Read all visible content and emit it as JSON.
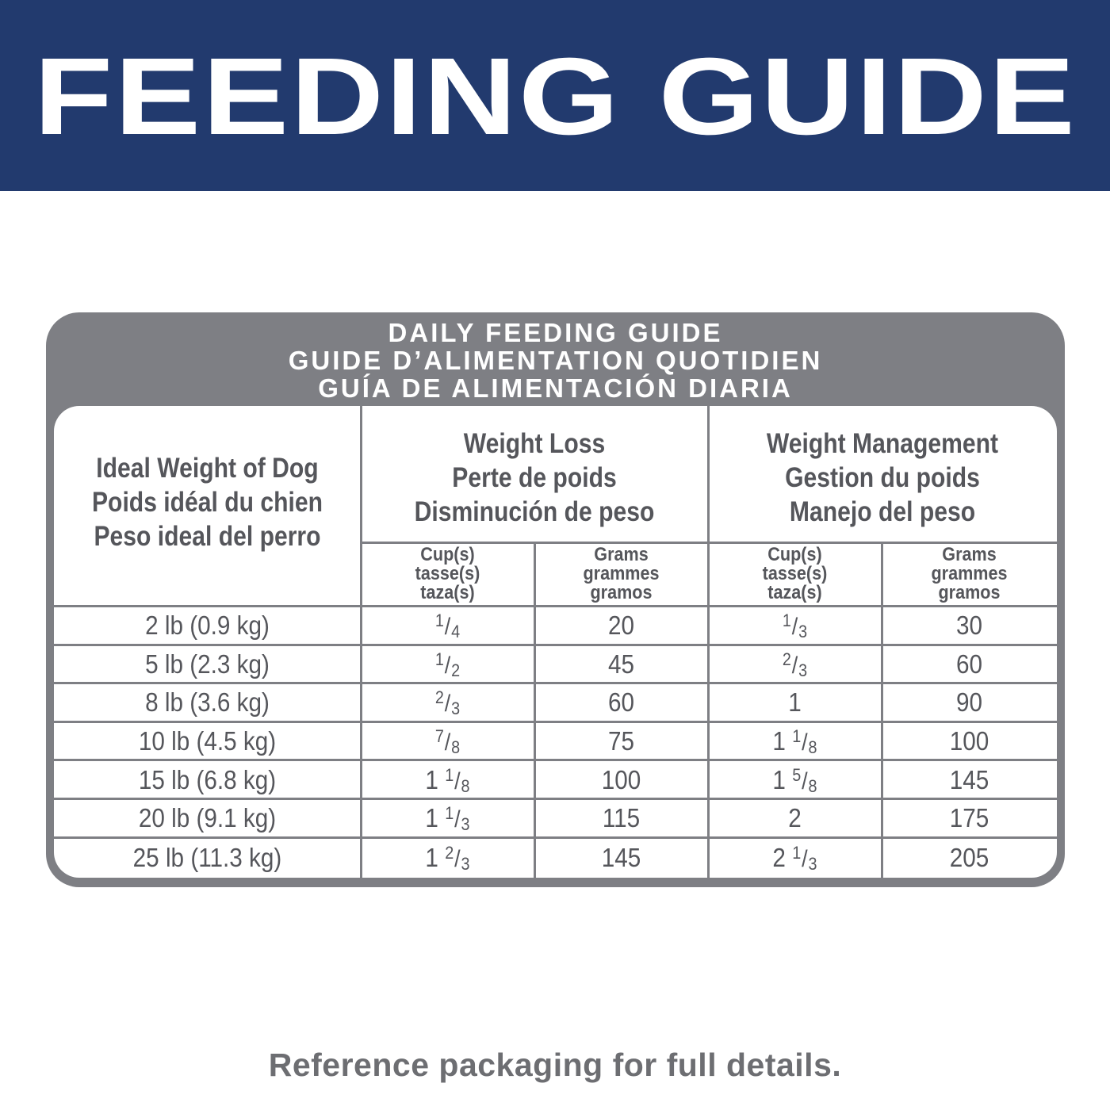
{
  "banner": {
    "title": "FEEDING GUIDE",
    "background": "#223a6e"
  },
  "card": {
    "background": "#7e7f84",
    "title_lines": [
      "DAILY FEEDING GUIDE",
      "GUIDE D’ALIMENTATION QUOTIDIEN",
      "GUÍA DE ALIMENTACIÓN DIARIA"
    ]
  },
  "table": {
    "weight_header": [
      "Ideal Weight of Dog",
      "Poids idéal du chien",
      "Peso ideal del perro"
    ],
    "groups": [
      {
        "lines": [
          "Weight Loss",
          "Perte de poids",
          "Disminución de peso"
        ]
      },
      {
        "lines": [
          "Weight Management",
          "Gestion du poids",
          "Manejo del peso"
        ]
      }
    ],
    "subheaders": [
      [
        "Cup(s)",
        "tasse(s)",
        "taza(s)"
      ],
      [
        "Grams",
        "grammes",
        "gramos"
      ],
      [
        "Cup(s)",
        "tasse(s)",
        "taza(s)"
      ],
      [
        "Grams",
        "grammes",
        "gramos"
      ]
    ],
    "rows": [
      {
        "weight": "2 lb (0.9 kg)",
        "loss_cups": {
          "whole": "",
          "num": "1",
          "den": "4"
        },
        "loss_grams": "20",
        "mgmt_cups": {
          "whole": "",
          "num": "1",
          "den": "3"
        },
        "mgmt_grams": "30"
      },
      {
        "weight": "5 lb (2.3 kg)",
        "loss_cups": {
          "whole": "",
          "num": "1",
          "den": "2"
        },
        "loss_grams": "45",
        "mgmt_cups": {
          "whole": "",
          "num": "2",
          "den": "3"
        },
        "mgmt_grams": "60"
      },
      {
        "weight": "8 lb (3.6 kg)",
        "loss_cups": {
          "whole": "",
          "num": "2",
          "den": "3"
        },
        "loss_grams": "60",
        "mgmt_cups": {
          "whole": "1",
          "num": "",
          "den": ""
        },
        "mgmt_grams": "90"
      },
      {
        "weight": "10 lb (4.5 kg)",
        "loss_cups": {
          "whole": "",
          "num": "7",
          "den": "8"
        },
        "loss_grams": "75",
        "mgmt_cups": {
          "whole": "1",
          "num": "1",
          "den": "8"
        },
        "mgmt_grams": "100"
      },
      {
        "weight": "15 lb (6.8 kg)",
        "loss_cups": {
          "whole": "1",
          "num": "1",
          "den": "8"
        },
        "loss_grams": "100",
        "mgmt_cups": {
          "whole": "1",
          "num": "5",
          "den": "8"
        },
        "mgmt_grams": "145"
      },
      {
        "weight": "20 lb (9.1 kg)",
        "loss_cups": {
          "whole": "1",
          "num": "1",
          "den": "3"
        },
        "loss_grams": "115",
        "mgmt_cups": {
          "whole": "2",
          "num": "",
          "den": ""
        },
        "mgmt_grams": "175"
      },
      {
        "weight": "25 lb (11.3 kg)",
        "loss_cups": {
          "whole": "1",
          "num": "2",
          "den": "3"
        },
        "loss_grams": "145",
        "mgmt_cups": {
          "whole": "2",
          "num": "1",
          "den": "3"
        },
        "mgmt_grams": "205"
      }
    ]
  },
  "footer": {
    "note": "Reference packaging for full details."
  }
}
